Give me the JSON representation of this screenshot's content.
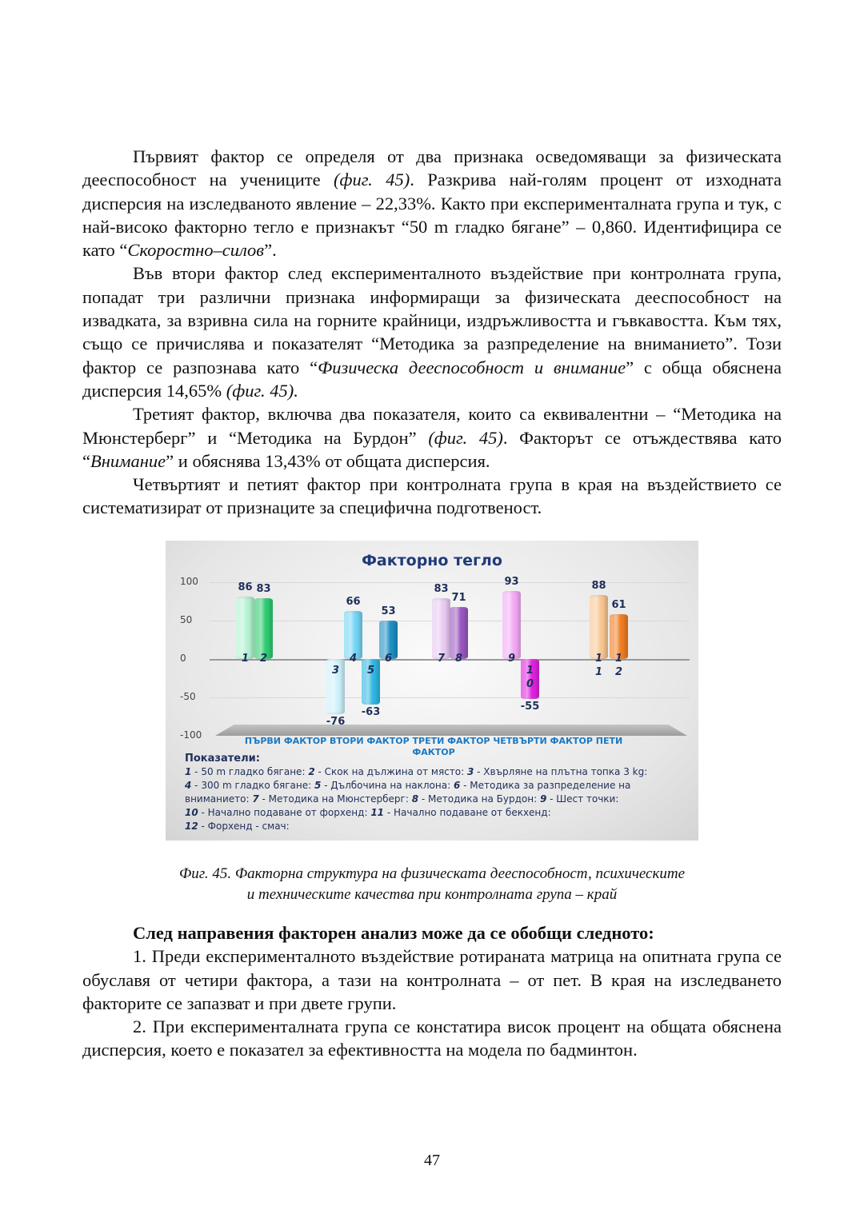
{
  "paragraphs_top": [
    {
      "parts": [
        {
          "t": "Първият фактор се определя от два признака осведомяващи за физическата дееспособност на учениците "
        },
        {
          "t": "(фиг. 45)",
          "i": true
        },
        {
          "t": ". Разкрива най-голям процент от изходната дисперсия на изследваното явление – 22,33%. Както при експерименталната група и тук, с най-високо факторно тегло е признакът “50 m гладко бягане” – 0,860. Идентифицира се като “"
        },
        {
          "t": "Скоростно–силов",
          "i": true
        },
        {
          "t": "”."
        }
      ]
    },
    {
      "parts": [
        {
          "t": "Във втори фактор след експерименталното въздействие при контролната група, попадат три различни признака информиращи за физическата дееспособност на извадката, за взривна сила на горните крайници, издръжливостта и гъвкавостта. Към тях, също се причислява и показателят “Методика за разпределение на вниманието”. Този фактор се разпознава като “"
        },
        {
          "t": "Физическа дееспособност и внимание",
          "i": true
        },
        {
          "t": "” с обща обяснена дисперсия 14,65% "
        },
        {
          "t": "(фиг. 45).",
          "i": true
        }
      ]
    },
    {
      "parts": [
        {
          "t": "Третият фактор, включва два показателя, които са еквивалентни – “Методика на Мюнстерберг” и “Методика на Бурдон” "
        },
        {
          "t": "(фиг. 45)",
          "i": true
        },
        {
          "t": ". Факторът се отъждествява като “"
        },
        {
          "t": "Внимание",
          "i": true
        },
        {
          "t": "” и обяснява 13,43% от общата дисперсия."
        }
      ]
    },
    {
      "parts": [
        {
          "t": "Четвъртият и петият фактор при контролната група в края на въздействието се систематизират от признаците за специфична подготвеност."
        }
      ]
    }
  ],
  "chart_data": {
    "type": "bar",
    "title": "Факторно тегло",
    "categories": [
      "ПЪРВИ ФАКТОР",
      "ВТОРИ ФАКТОР",
      "ТРЕТИ ФАКТОР",
      "ЧЕТВЪРТИ ФАКТОР",
      "ПЕТИ ФАКТОР"
    ],
    "ylim": [
      -100,
      100
    ],
    "yticks": [
      "100",
      "50",
      "0",
      "-50",
      "-100"
    ],
    "grid": true,
    "bars": [
      {
        "n": "1",
        "value": 86,
        "category": "ПЪРВИ ФАКТОР",
        "color": "#b4f2d2"
      },
      {
        "n": "2",
        "value": 83,
        "category": "ПЪРВИ ФАКТОР",
        "color": "#2ecc71"
      },
      {
        "n": "3",
        "value": -76,
        "category": "ВТОРИ ФАКТОР",
        "color": "#cdf1fb"
      },
      {
        "n": "4",
        "value": 66,
        "category": "ВТОРИ ФАКТОР",
        "color": "#74d5f5"
      },
      {
        "n": "5",
        "value": -63,
        "category": "ВТОРИ ФАКТОР",
        "color": "#2fb8e2"
      },
      {
        "n": "6",
        "value": 53,
        "category": "ВТОРИ ФАКТОР",
        "color": "#1d8fc2"
      },
      {
        "n": "7",
        "value": 83,
        "category": "ТРЕТИ ФАКТОР",
        "color": "#e7caf2"
      },
      {
        "n": "8",
        "value": 71,
        "category": "ТРЕТИ ФАКТОР",
        "color": "#9a58c0"
      },
      {
        "n": "9",
        "value": 93,
        "category": "ЧЕТВЪРТИ ФАКТОР",
        "color": "#f4aaf6"
      },
      {
        "n": "10",
        "value": -55,
        "category": "ЧЕТВЪРТИ ФАКТОР",
        "color": "#e022e0"
      },
      {
        "n": "11",
        "value": 88,
        "category": "ПЕТИ ФАКТОР",
        "color": "#f8c692"
      },
      {
        "n": "12",
        "value": 61,
        "category": "ПЕТИ ФАКТОР",
        "color": "#f07d22"
      }
    ],
    "legend_title": "Показатели:",
    "legend": [
      {
        "n": "1",
        "text": " - 50 m гладко бягане: "
      },
      {
        "n": "2",
        "text": " - Скок на дължина от място: "
      },
      {
        "n": "3",
        "text": " - Хвърляне на плътна топка 3 kg: "
      },
      {
        "n": "4",
        "text": " - 300 m гладко бягане: "
      },
      {
        "n": "5",
        "text": " - Дълбочина на наклона: "
      },
      {
        "n": "6",
        "text": " - Методика за разпределение на вниманието: "
      },
      {
        "n": "7",
        "text": " - Методика на Мюнстерберг: "
      },
      {
        "n": "8",
        "text": " - Методика на Бурдон: "
      },
      {
        "n": "9",
        "text": " - Шест точки: "
      },
      {
        "n": "10",
        "text": " - Начално подаване от форхенд: "
      },
      {
        "n": "11",
        "text": " - Начално подаване от бекхенд: "
      },
      {
        "n": "12",
        "text": " - Форхенд - смач:"
      }
    ]
  },
  "caption": {
    "line1": "Фиг. 45. Факторна структура на физическата дееспособност, психическите",
    "line2": "и техническите качества при контролната група – край"
  },
  "summary": {
    "heading": "След направения факторен анализ може да се обобщи следното:",
    "items": [
      "1. Преди експерименталното въздействие ротираната матрица на опитната група се обуславя от четири фактора, а тази на контролната – от пет. В края на изследването факторите се запазват и при двете групи.",
      "2. При експерименталната група се констатира висок процент на общата обяснена дисперсия, което е показател за ефективността на модела по бадминтон."
    ]
  },
  "page_number": "47"
}
